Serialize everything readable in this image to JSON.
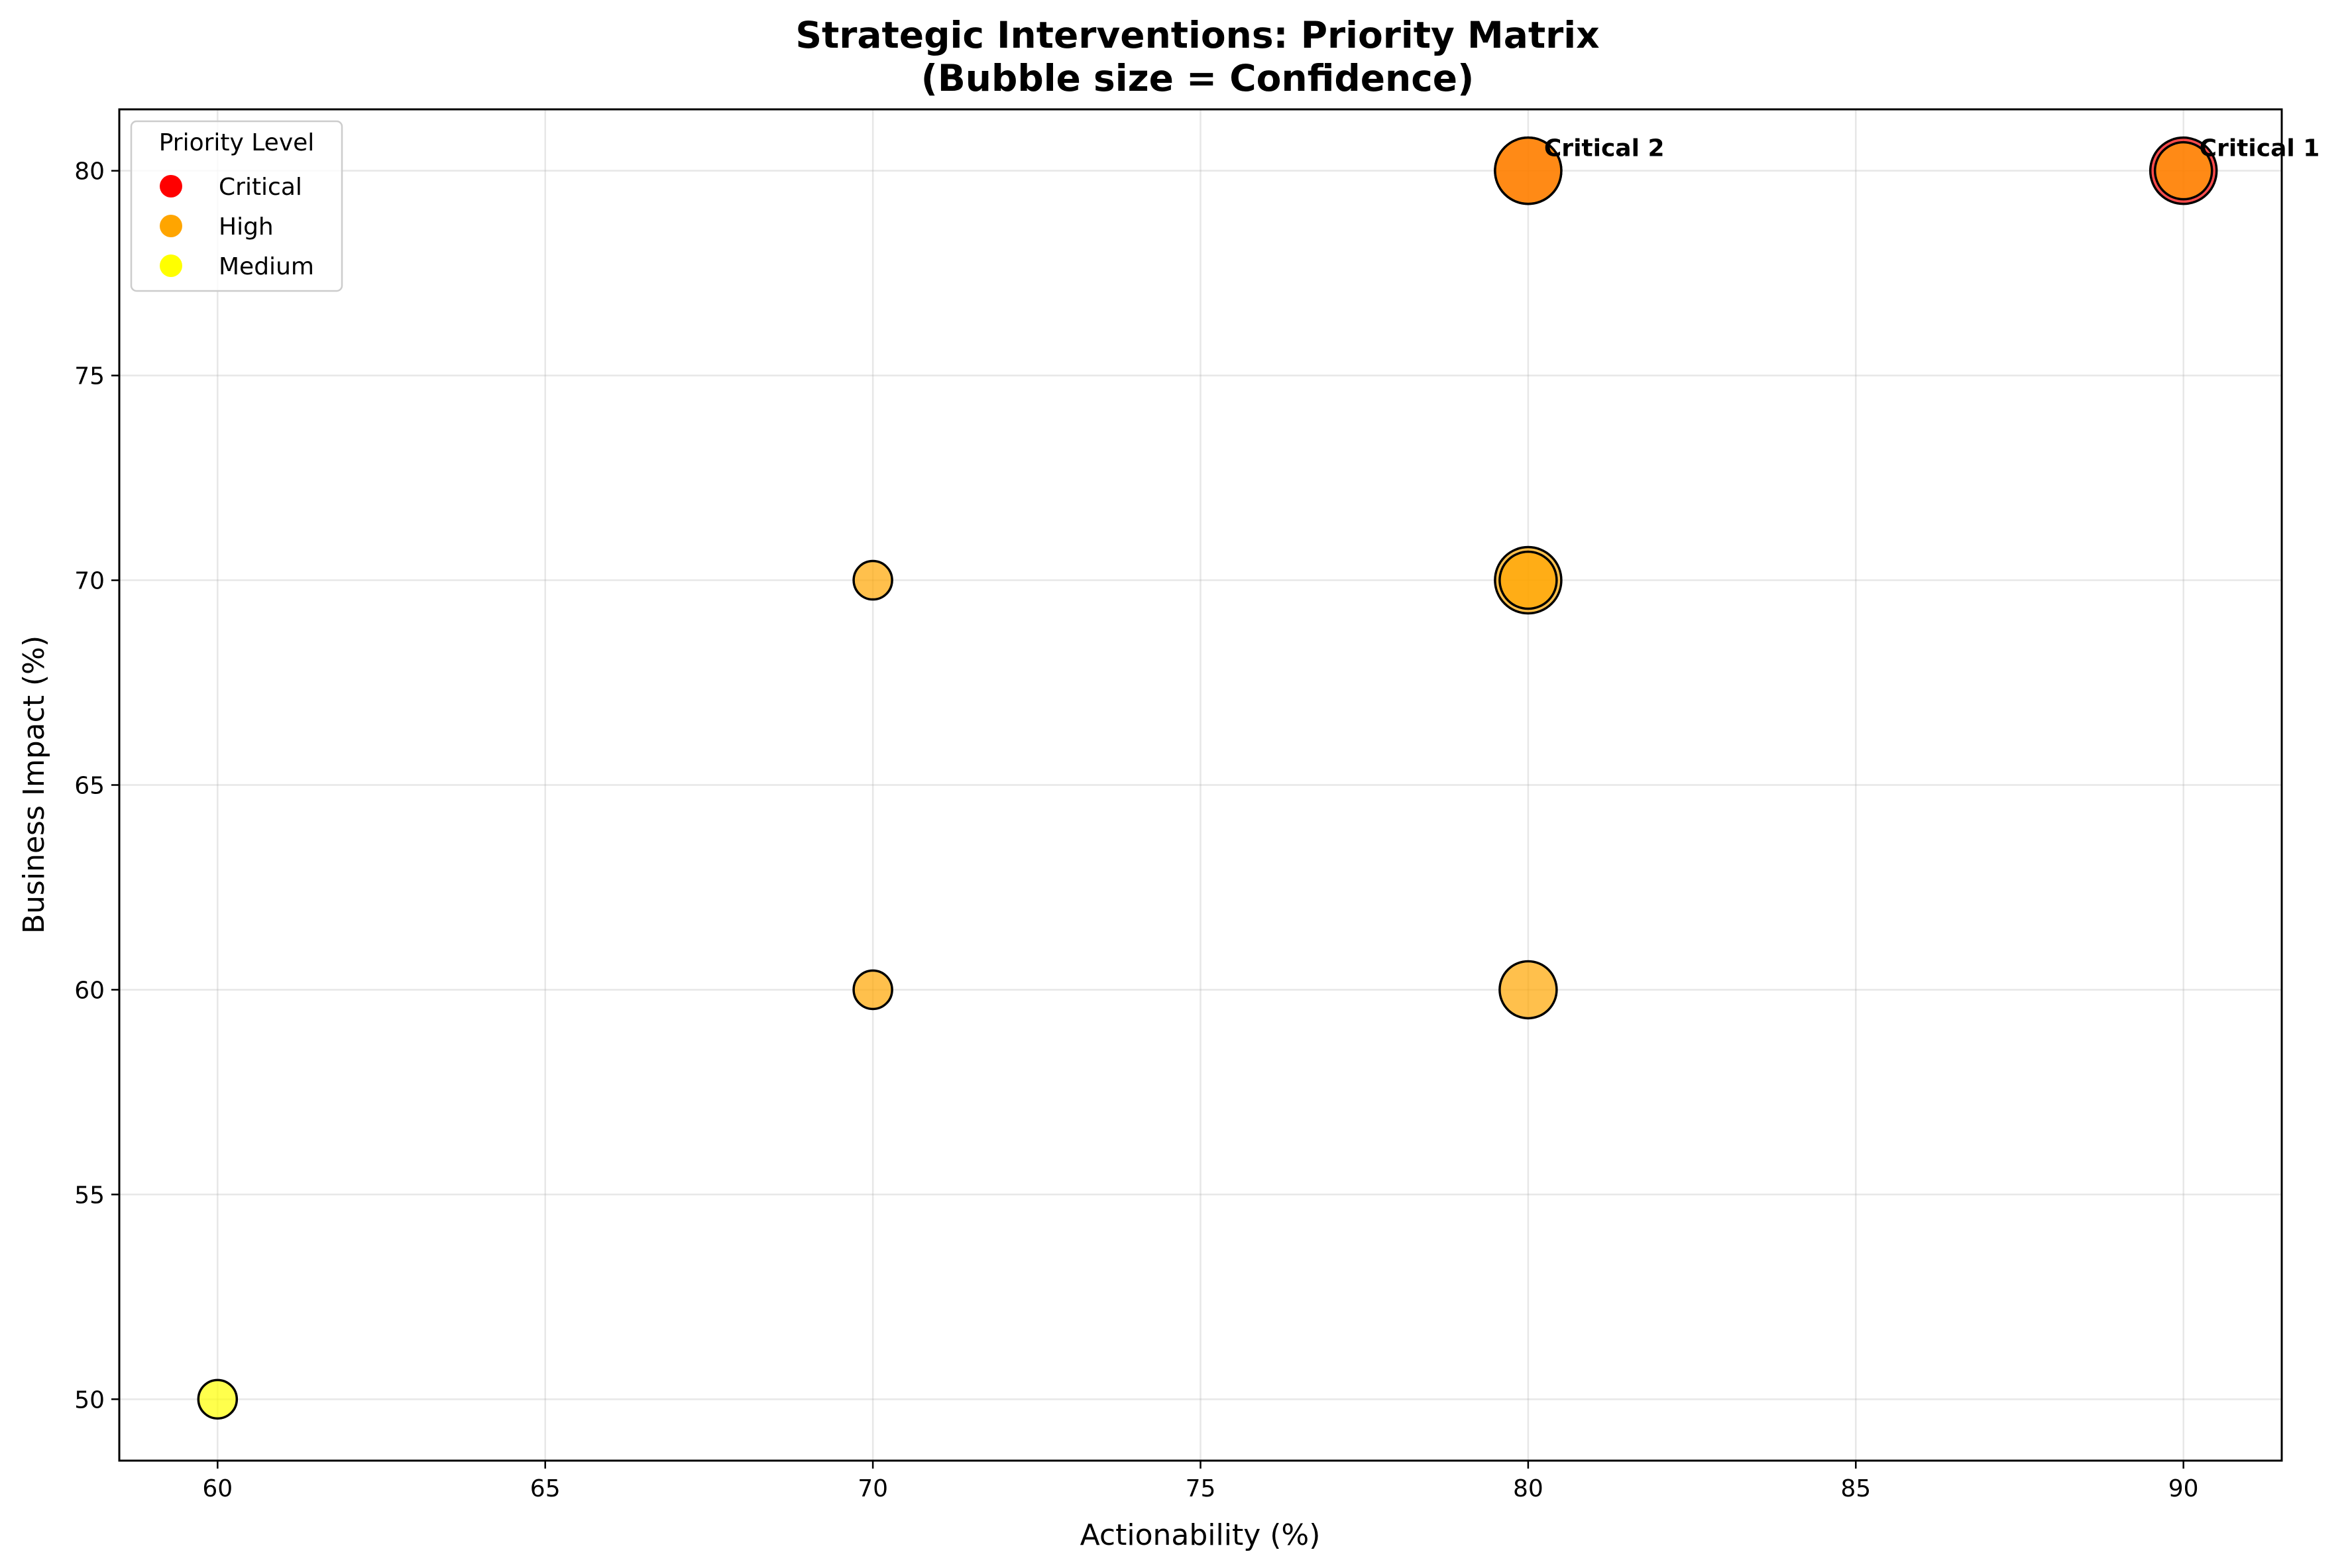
{
  "chart_data": {
    "type": "scatter",
    "title": "Strategic Interventions: Priority Matrix",
    "subtitle": "(Bubble size = Confidence)",
    "xlabel": "Actionability (%)",
    "ylabel": "Business Impact (%)",
    "xlim": [
      58.5,
      91.5
    ],
    "ylim": [
      48.5,
      81.5
    ],
    "xticks": [
      60,
      65,
      70,
      75,
      80,
      85,
      90
    ],
    "yticks": [
      50,
      55,
      60,
      65,
      70,
      75,
      80
    ],
    "grid": true,
    "legend": {
      "title": "Priority Level",
      "placement": "top-left",
      "entries": [
        {
          "label": "Critical",
          "color": "#ff0000"
        },
        {
          "label": "High",
          "color": "#ffa500"
        },
        {
          "label": "Medium",
          "color": "#ffff00"
        }
      ]
    },
    "points": [
      {
        "x": 90,
        "y": 80,
        "priority": "Critical",
        "confidence": 90,
        "color": "#ff0000",
        "label": "Critical 1"
      },
      {
        "x": 80,
        "y": 80,
        "priority": "Critical",
        "confidence": 90,
        "color": "#ff0000",
        "label": "Critical 2"
      },
      {
        "x": 90,
        "y": 80,
        "priority": "High",
        "confidence": 85,
        "color": "#ffa500",
        "label": ""
      },
      {
        "x": 80,
        "y": 80,
        "priority": "High",
        "confidence": 90,
        "color": "#ffa500",
        "label": ""
      },
      {
        "x": 80,
        "y": 70,
        "priority": "High",
        "confidence": 90,
        "color": "#ffa500",
        "label": ""
      },
      {
        "x": 80,
        "y": 70,
        "priority": "High",
        "confidence": 85,
        "color": "#ffa500",
        "label": ""
      },
      {
        "x": 80,
        "y": 60,
        "priority": "High",
        "confidence": 85,
        "color": "#ffa500",
        "label": ""
      },
      {
        "x": 70,
        "y": 70,
        "priority": "High",
        "confidence": 75,
        "color": "#ffa500",
        "label": ""
      },
      {
        "x": 70,
        "y": 60,
        "priority": "High",
        "confidence": 75,
        "color": "#ffa500",
        "label": ""
      },
      {
        "x": 60,
        "y": 50,
        "priority": "Medium",
        "confidence": 75,
        "color": "#ffff00",
        "label": ""
      }
    ]
  }
}
